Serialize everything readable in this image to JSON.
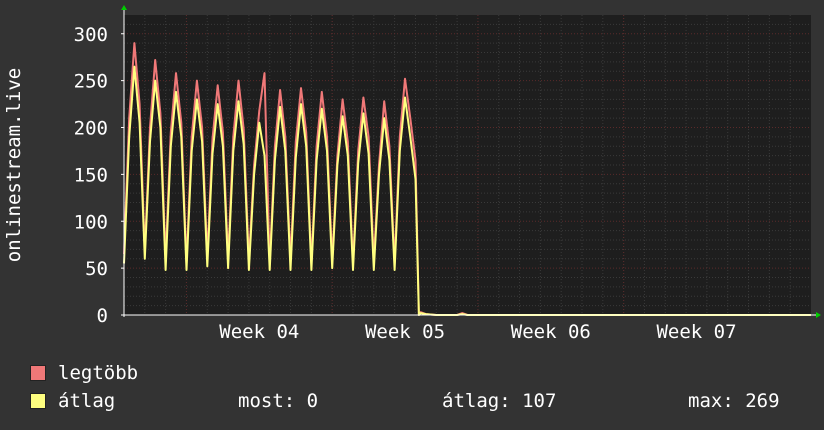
{
  "chart_data": {
    "type": "line",
    "ylabel": "onlinestream.live",
    "ylim": [
      0,
      320
    ],
    "yticks": [
      0,
      50,
      100,
      150,
      200,
      250,
      300
    ],
    "x_range": [
      "2018-01-19",
      "2018-02-21"
    ],
    "xticks": [
      {
        "label": "Week 04",
        "date": "2018-01-22"
      },
      {
        "label": "Week 05",
        "date": "2018-01-29"
      },
      {
        "label": "Week 06",
        "date": "2018-02-05"
      },
      {
        "label": "Week 07",
        "date": "2018-02-12"
      }
    ],
    "grid": true,
    "colors": {
      "background": "#333333",
      "plot": "#1e1e1e",
      "grid": "#5a2a2a",
      "axis": "#ffffff",
      "arrow": "#00cc00"
    },
    "series": [
      {
        "name": "legtöbb",
        "color": "#f07878",
        "points": [
          [
            "2018-01-19",
            65
          ],
          [
            "2018-01-19T06:00",
            210
          ],
          [
            "2018-01-19T12:00",
            290
          ],
          [
            "2018-01-19T18:00",
            225
          ],
          [
            "2018-01-20",
            68
          ],
          [
            "2018-01-20T06:00",
            200
          ],
          [
            "2018-01-20T12:00",
            272
          ],
          [
            "2018-01-20T18:00",
            215
          ],
          [
            "2018-01-21",
            60
          ],
          [
            "2018-01-21T06:00",
            195
          ],
          [
            "2018-01-21T12:00",
            258
          ],
          [
            "2018-01-21T18:00",
            205
          ],
          [
            "2018-01-22",
            55
          ],
          [
            "2018-01-22T06:00",
            190
          ],
          [
            "2018-01-22T12:00",
            250
          ],
          [
            "2018-01-22T18:00",
            200
          ],
          [
            "2018-01-23",
            62
          ],
          [
            "2018-01-23T06:00",
            188
          ],
          [
            "2018-01-23T12:00",
            245
          ],
          [
            "2018-01-23T18:00",
            195
          ],
          [
            "2018-01-24",
            60
          ],
          [
            "2018-01-24T06:00",
            190
          ],
          [
            "2018-01-24T12:00",
            250
          ],
          [
            "2018-01-24T18:00",
            198
          ],
          [
            "2018-01-25",
            58
          ],
          [
            "2018-01-25T06:00",
            160
          ],
          [
            "2018-01-25T12:00",
            218
          ],
          [
            "2018-01-25T18:00",
            258
          ],
          [
            "2018-01-26",
            55
          ],
          [
            "2018-01-26T06:00",
            180
          ],
          [
            "2018-01-26T12:00",
            240
          ],
          [
            "2018-01-26T18:00",
            190
          ],
          [
            "2018-01-27",
            58
          ],
          [
            "2018-01-27T06:00",
            185
          ],
          [
            "2018-01-27T12:00",
            242
          ],
          [
            "2018-01-27T18:00",
            195
          ],
          [
            "2018-01-28",
            55
          ],
          [
            "2018-01-28T06:00",
            180
          ],
          [
            "2018-01-28T12:00",
            238
          ],
          [
            "2018-01-28T18:00",
            190
          ],
          [
            "2018-01-29",
            58
          ],
          [
            "2018-01-29T06:00",
            170
          ],
          [
            "2018-01-29T12:00",
            230
          ],
          [
            "2018-01-29T18:00",
            185
          ],
          [
            "2018-01-30",
            55
          ],
          [
            "2018-01-30T06:00",
            175
          ],
          [
            "2018-01-30T12:00",
            232
          ],
          [
            "2018-01-30T18:00",
            190
          ],
          [
            "2018-01-31",
            58
          ],
          [
            "2018-01-31T06:00",
            160
          ],
          [
            "2018-01-31T12:00",
            228
          ],
          [
            "2018-01-31T18:00",
            180
          ],
          [
            "2018-02-01",
            55
          ],
          [
            "2018-02-01T06:00",
            190
          ],
          [
            "2018-02-01T12:00",
            252
          ],
          [
            "2018-02-01T18:00",
            210
          ],
          [
            "2018-02-02T00:00",
            165
          ],
          [
            "2018-02-02T04:00",
            0
          ],
          [
            "2018-02-02T06:00",
            3
          ],
          [
            "2018-02-02T12:00",
            1
          ],
          [
            "2018-02-03",
            0
          ],
          [
            "2018-02-04",
            0
          ],
          [
            "2018-02-04T06:00",
            2
          ],
          [
            "2018-02-04T12:00",
            0
          ],
          [
            "2018-02-21",
            0
          ]
        ]
      },
      {
        "name": "átlag",
        "color": "#ffff80",
        "points": [
          [
            "2018-01-19",
            55
          ],
          [
            "2018-01-19T06:00",
            190
          ],
          [
            "2018-01-19T12:00",
            265
          ],
          [
            "2018-01-19T18:00",
            205
          ],
          [
            "2018-01-20",
            60
          ],
          [
            "2018-01-20T06:00",
            185
          ],
          [
            "2018-01-20T12:00",
            250
          ],
          [
            "2018-01-20T18:00",
            200
          ],
          [
            "2018-01-21",
            48
          ],
          [
            "2018-01-21T06:00",
            180
          ],
          [
            "2018-01-21T12:00",
            238
          ],
          [
            "2018-01-21T18:00",
            190
          ],
          [
            "2018-01-22",
            48
          ],
          [
            "2018-01-22T06:00",
            175
          ],
          [
            "2018-01-22T12:00",
            230
          ],
          [
            "2018-01-22T18:00",
            185
          ],
          [
            "2018-01-23",
            52
          ],
          [
            "2018-01-23T06:00",
            172
          ],
          [
            "2018-01-23T12:00",
            225
          ],
          [
            "2018-01-23T18:00",
            180
          ],
          [
            "2018-01-24",
            50
          ],
          [
            "2018-01-24T06:00",
            175
          ],
          [
            "2018-01-24T12:00",
            228
          ],
          [
            "2018-01-24T18:00",
            182
          ],
          [
            "2018-01-25",
            48
          ],
          [
            "2018-01-25T06:00",
            150
          ],
          [
            "2018-01-25T12:00",
            205
          ],
          [
            "2018-01-25T18:00",
            170
          ],
          [
            "2018-01-26",
            48
          ],
          [
            "2018-01-26T06:00",
            165
          ],
          [
            "2018-01-26T12:00",
            222
          ],
          [
            "2018-01-26T18:00",
            175
          ],
          [
            "2018-01-27",
            48
          ],
          [
            "2018-01-27T06:00",
            168
          ],
          [
            "2018-01-27T12:00",
            225
          ],
          [
            "2018-01-27T18:00",
            180
          ],
          [
            "2018-01-28",
            48
          ],
          [
            "2018-01-28T06:00",
            165
          ],
          [
            "2018-01-28T12:00",
            220
          ],
          [
            "2018-01-28T18:00",
            175
          ],
          [
            "2018-01-29",
            50
          ],
          [
            "2018-01-29T06:00",
            160
          ],
          [
            "2018-01-29T12:00",
            212
          ],
          [
            "2018-01-29T18:00",
            170
          ],
          [
            "2018-01-30",
            48
          ],
          [
            "2018-01-30T06:00",
            162
          ],
          [
            "2018-01-30T12:00",
            215
          ],
          [
            "2018-01-30T18:00",
            172
          ],
          [
            "2018-01-31",
            48
          ],
          [
            "2018-01-31T06:00",
            150
          ],
          [
            "2018-01-31T12:00",
            210
          ],
          [
            "2018-01-31T18:00",
            165
          ],
          [
            "2018-02-01",
            48
          ],
          [
            "2018-02-01T06:00",
            175
          ],
          [
            "2018-02-01T12:00",
            232
          ],
          [
            "2018-02-01T18:00",
            190
          ],
          [
            "2018-02-02T00:00",
            145
          ],
          [
            "2018-02-02T04:00",
            0
          ],
          [
            "2018-02-02T06:00",
            2
          ],
          [
            "2018-02-02T12:00",
            1
          ],
          [
            "2018-02-03",
            0
          ],
          [
            "2018-02-04",
            0
          ],
          [
            "2018-02-04T06:00",
            1
          ],
          [
            "2018-02-04T12:00",
            0
          ],
          [
            "2018-02-21",
            0
          ]
        ]
      }
    ]
  },
  "legend": {
    "items": [
      {
        "label": "legtöbb",
        "color": "#f07878"
      },
      {
        "label": "átlag",
        "color": "#ffff80"
      }
    ]
  },
  "stats": {
    "most": "most: 0",
    "atlag": "átlag: 107",
    "max": "max: 269"
  }
}
